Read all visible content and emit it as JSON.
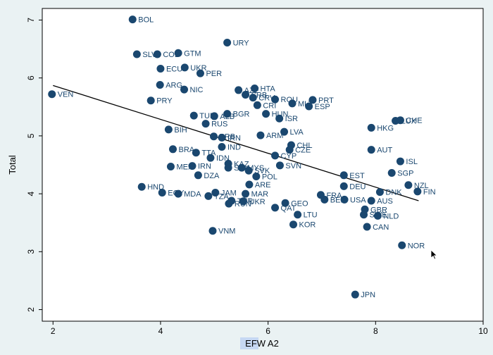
{
  "chart_data": {
    "type": "scatter",
    "xlabel": "EFW A2",
    "ylabel": "Total",
    "xlim": [
      1.8,
      10.0
    ],
    "ylim": [
      1.8,
      7.2
    ],
    "xticks": [
      2,
      4,
      6,
      8,
      10
    ],
    "yticks": [
      2,
      3,
      4,
      5,
      6,
      7
    ],
    "grid": false,
    "fit_line": {
      "x": [
        2.0,
        8.8
      ],
      "y": [
        5.87,
        3.88
      ]
    },
    "points": [
      {
        "label": "BOL",
        "x": 3.48,
        "y": 7.01
      },
      {
        "label": "URY",
        "x": 5.24,
        "y": 6.61
      },
      {
        "label": "SLV",
        "x": 3.56,
        "y": 6.41
      },
      {
        "label": "COL",
        "x": 3.94,
        "y": 6.41
      },
      {
        "label": "GTM",
        "x": 4.33,
        "y": 6.43
      },
      {
        "label": "ECU",
        "x": 4.0,
        "y": 6.16
      },
      {
        "label": "UKR",
        "x": 4.45,
        "y": 6.18
      },
      {
        "label": "PER",
        "x": 4.74,
        "y": 6.08
      },
      {
        "label": "ARG",
        "x": 3.99,
        "y": 5.88
      },
      {
        "label": "NIC",
        "x": 4.44,
        "y": 5.8
      },
      {
        "label": "VEN",
        "x": 1.98,
        "y": 5.72
      },
      {
        "label": "PRY",
        "x": 3.82,
        "y": 5.61
      },
      {
        "label": "AZE",
        "x": 5.45,
        "y": 5.79
      },
      {
        "label": "HTA",
        "x": 5.75,
        "y": 5.82
      },
      {
        "label": "SRB",
        "x": 5.58,
        "y": 5.71
      },
      {
        "label": "CRV",
        "x": 5.72,
        "y": 5.66
      },
      {
        "label": "ROU",
        "x": 6.13,
        "y": 5.63
      },
      {
        "label": "PRT",
        "x": 6.83,
        "y": 5.62
      },
      {
        "label": "MLT",
        "x": 6.45,
        "y": 5.56
      },
      {
        "label": "ESP",
        "x": 6.76,
        "y": 5.51
      },
      {
        "label": "CRI",
        "x": 5.8,
        "y": 5.53
      },
      {
        "label": "TUR",
        "x": 4.62,
        "y": 5.35
      },
      {
        "label": "ALB",
        "x": 5.0,
        "y": 5.34
      },
      {
        "label": "BGR",
        "x": 5.24,
        "y": 5.38
      },
      {
        "label": "HUN",
        "x": 5.96,
        "y": 5.38
      },
      {
        "label": "ISR",
        "x": 6.21,
        "y": 5.3
      },
      {
        "label": "RUS",
        "x": 4.84,
        "y": 5.21
      },
      {
        "label": "BIH",
        "x": 4.15,
        "y": 5.11
      },
      {
        "label": "LVA",
        "x": 6.3,
        "y": 5.07
      },
      {
        "label": "ARM",
        "x": 5.86,
        "y": 5.01
      },
      {
        "label": "BRB",
        "x": 4.99,
        "y": 4.99
      },
      {
        "label": "IRN",
        "x": 5.14,
        "y": 4.97
      },
      {
        "label": "HKG",
        "x": 7.92,
        "y": 5.14
      },
      {
        "label": "LUX",
        "x": 8.37,
        "y": 5.26
      },
      {
        "label": "CHE",
        "x": 8.46,
        "y": 5.27
      },
      {
        "label": "IND",
        "x": 5.14,
        "y": 4.81
      },
      {
        "label": "CHL",
        "x": 6.43,
        "y": 4.84
      },
      {
        "label": "CZE",
        "x": 6.4,
        "y": 4.76
      },
      {
        "label": "AUT",
        "x": 7.92,
        "y": 4.76
      },
      {
        "label": "BRA",
        "x": 4.23,
        "y": 4.77
      },
      {
        "label": "TTA",
        "x": 4.66,
        "y": 4.71
      },
      {
        "label": "CYP",
        "x": 6.13,
        "y": 4.66
      },
      {
        "label": "IDN",
        "x": 4.93,
        "y": 4.62
      },
      {
        "label": "ISL",
        "x": 8.46,
        "y": 4.56
      },
      {
        "label": "KAZ",
        "x": 5.26,
        "y": 4.52
      },
      {
        "label": "MEX",
        "x": 4.19,
        "y": 4.47
      },
      {
        "label": "IRN",
        "x": 4.59,
        "y": 4.48
      },
      {
        "label": "SVK",
        "x": 5.26,
        "y": 4.45
      },
      {
        "label": "MYS",
        "x": 5.51,
        "y": 4.45
      },
      {
        "label": "SVN",
        "x": 6.22,
        "y": 4.49
      },
      {
        "label": "SVK",
        "x": 5.64,
        "y": 4.4
      },
      {
        "label": "SGP",
        "x": 8.3,
        "y": 4.36
      },
      {
        "label": "DZA",
        "x": 4.7,
        "y": 4.32
      },
      {
        "label": "POL",
        "x": 5.78,
        "y": 4.3
      },
      {
        "label": "EST",
        "x": 7.41,
        "y": 4.32
      },
      {
        "label": "ARE",
        "x": 5.65,
        "y": 4.16
      },
      {
        "label": "DEU",
        "x": 7.41,
        "y": 4.13
      },
      {
        "label": "NZL",
        "x": 8.61,
        "y": 4.15
      },
      {
        "label": "HND",
        "x": 3.65,
        "y": 4.12
      },
      {
        "label": "EGY",
        "x": 4.03,
        "y": 4.02
      },
      {
        "label": "MDA",
        "x": 4.33,
        "y": 4.0
      },
      {
        "label": "JAM",
        "x": 5.02,
        "y": 4.02
      },
      {
        "label": "MAR",
        "x": 5.58,
        "y": 4.0
      },
      {
        "label": "DNK",
        "x": 8.08,
        "y": 4.03
      },
      {
        "label": "FIN",
        "x": 8.78,
        "y": 4.04
      },
      {
        "label": "FRA",
        "x": 6.98,
        "y": 3.98
      },
      {
        "label": "BEL",
        "x": 7.05,
        "y": 3.9
      },
      {
        "label": "USA",
        "x": 7.42,
        "y": 3.9
      },
      {
        "label": "AUS",
        "x": 7.92,
        "y": 3.88
      },
      {
        "label": "GEO",
        "x": 6.32,
        "y": 3.84
      },
      {
        "label": "TZA",
        "x": 4.89,
        "y": 3.96
      },
      {
        "label": "TUR",
        "x": 5.32,
        "y": 3.88
      },
      {
        "label": "RUN",
        "x": 5.27,
        "y": 3.83
      },
      {
        "label": "UKR",
        "x": 5.54,
        "y": 3.87
      },
      {
        "label": "QAT",
        "x": 6.13,
        "y": 3.76
      },
      {
        "label": "GBR",
        "x": 7.8,
        "y": 3.73
      },
      {
        "label": "SWE",
        "x": 7.78,
        "y": 3.64
      },
      {
        "label": "NLD",
        "x": 8.04,
        "y": 3.62
      },
      {
        "label": "LTU",
        "x": 6.55,
        "y": 3.64
      },
      {
        "label": "KOR",
        "x": 6.47,
        "y": 3.47
      },
      {
        "label": "CAN",
        "x": 7.84,
        "y": 3.43
      },
      {
        "label": "VNM",
        "x": 4.97,
        "y": 3.36
      },
      {
        "label": "NOR",
        "x": 8.49,
        "y": 3.11
      },
      {
        "label": "JPN",
        "x": 7.62,
        "y": 2.26
      }
    ]
  }
}
